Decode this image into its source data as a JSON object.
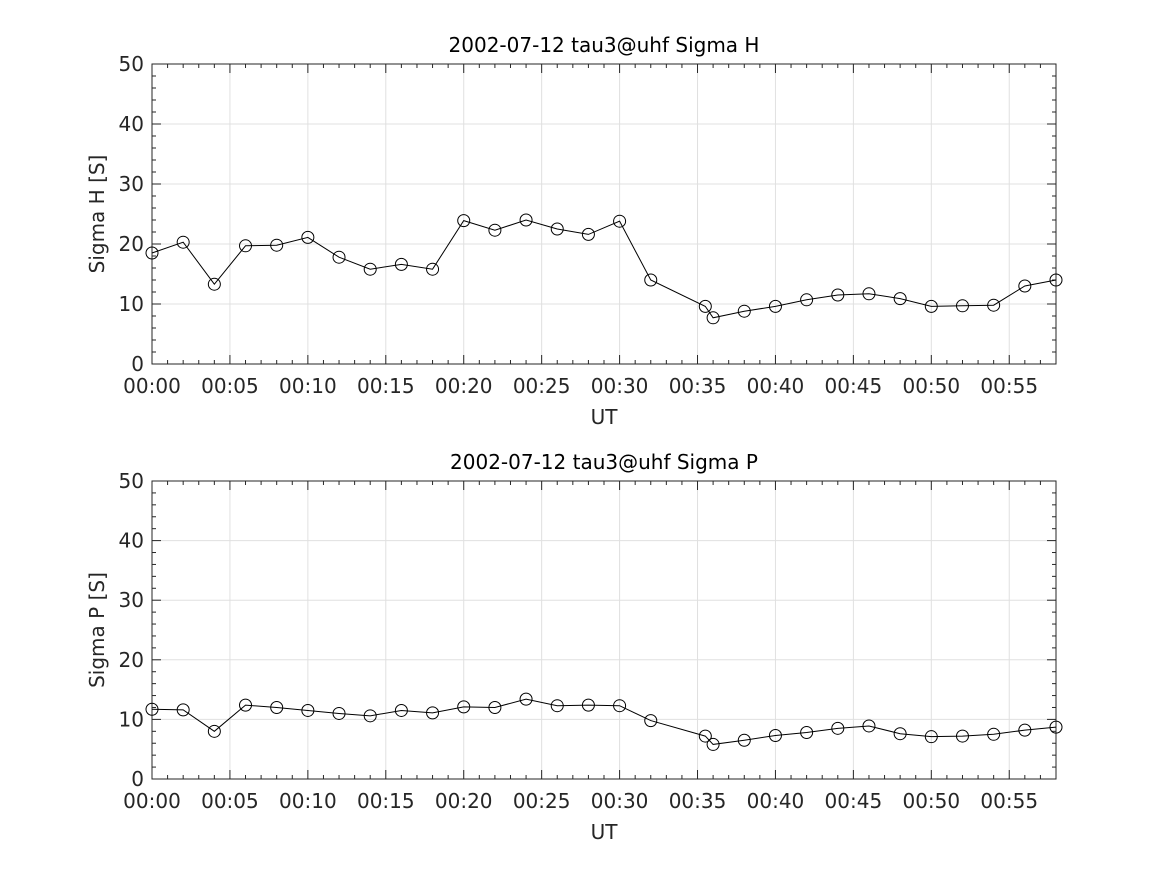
{
  "chart_data": [
    {
      "type": "line",
      "title": "2002-07-12  tau3@uhf Sigma H",
      "xlabel": "UT",
      "ylabel": "Sigma H [S]",
      "xlim": [
        "00:00",
        "00:58"
      ],
      "ylim": [
        0,
        50
      ],
      "x_ticks": [
        "00:00",
        "00:05",
        "00:10",
        "00:15",
        "00:20",
        "00:25",
        "00:30",
        "00:35",
        "00:40",
        "00:45",
        "00:50",
        "00:55"
      ],
      "y_ticks": [
        0,
        10,
        20,
        30,
        40,
        50
      ],
      "grid": true,
      "marker": "circle",
      "line_color": "#000000",
      "series": [
        {
          "x": [
            "00:00",
            "00:02",
            "00:04",
            "00:06",
            "00:08",
            "00:10",
            "00:12",
            "00:14",
            "00:16",
            "00:18",
            "00:20",
            "00:22",
            "00:24",
            "00:26",
            "00:28",
            "00:30",
            "00:32",
            "00:35:30",
            "00:36",
            "00:38",
            "00:40",
            "00:42",
            "00:44",
            "00:46",
            "00:48",
            "00:50",
            "00:52",
            "00:54",
            "00:56",
            "00:58"
          ],
          "values": [
            18.5,
            20.3,
            13.3,
            19.7,
            19.8,
            21.1,
            17.8,
            15.8,
            16.6,
            15.8,
            23.9,
            22.3,
            24.0,
            22.5,
            21.6,
            23.8,
            14.0,
            9.6,
            7.7,
            8.8,
            9.6,
            10.7,
            11.5,
            11.7,
            10.9,
            9.6,
            9.7,
            9.8,
            13.0,
            14.0
          ]
        }
      ]
    },
    {
      "type": "line",
      "title": "2002-07-12  tau3@uhf Sigma P",
      "xlabel": "UT",
      "ylabel": "Sigma P [S]",
      "xlim": [
        "00:00",
        "00:58"
      ],
      "ylim": [
        0,
        50
      ],
      "x_ticks": [
        "00:00",
        "00:05",
        "00:10",
        "00:15",
        "00:20",
        "00:25",
        "00:30",
        "00:35",
        "00:40",
        "00:45",
        "00:50",
        "00:55"
      ],
      "y_ticks": [
        0,
        10,
        20,
        30,
        40,
        50
      ],
      "grid": true,
      "marker": "circle",
      "line_color": "#000000",
      "series": [
        {
          "x": [
            "00:00",
            "00:02",
            "00:04",
            "00:06",
            "00:08",
            "00:10",
            "00:12",
            "00:14",
            "00:16",
            "00:18",
            "00:20",
            "00:22",
            "00:24",
            "00:26",
            "00:28",
            "00:30",
            "00:32",
            "00:35:30",
            "00:36",
            "00:38",
            "00:40",
            "00:42",
            "00:44",
            "00:46",
            "00:48",
            "00:50",
            "00:52",
            "00:54",
            "00:56",
            "00:58"
          ],
          "values": [
            11.7,
            11.6,
            8.0,
            12.4,
            12.0,
            11.5,
            11.0,
            10.6,
            11.5,
            11.1,
            12.1,
            12.0,
            13.4,
            12.3,
            12.4,
            12.3,
            9.8,
            7.2,
            5.8,
            6.5,
            7.3,
            7.8,
            8.5,
            8.9,
            7.6,
            7.1,
            7.2,
            7.5,
            8.2,
            8.7
          ]
        }
      ]
    }
  ]
}
